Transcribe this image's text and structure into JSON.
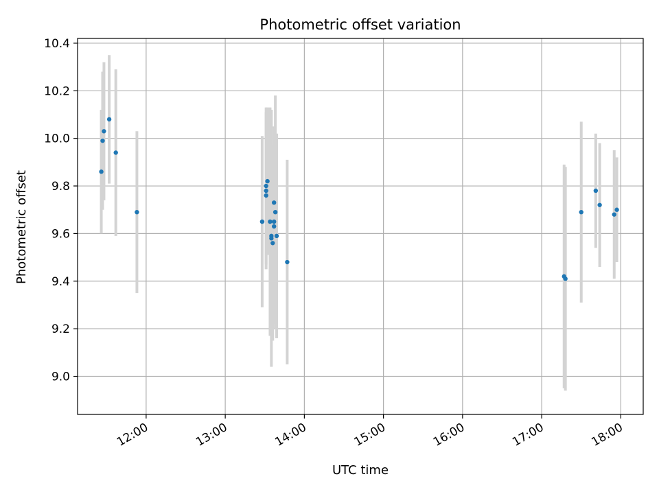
{
  "chart_data": {
    "type": "scatter",
    "title": "Photometric offset variation",
    "xlabel": "UTC time",
    "ylabel": "Photometric offset",
    "grid": true,
    "xlim": [
      "11:08",
      "18:17"
    ],
    "ylim": [
      8.84,
      10.42
    ],
    "x_ticks": [
      "12:00",
      "13:00",
      "14:00",
      "15:00",
      "16:00",
      "17:00",
      "18:00"
    ],
    "y_ticks": [
      "9.0",
      "9.2",
      "9.4",
      "9.6",
      "9.8",
      "10.0",
      "10.2",
      "10.4"
    ],
    "colors": {
      "point": "#1f77b4",
      "errorbar": "#d3d3d3",
      "grid": "#b0b0b0"
    },
    "points": [
      {
        "x": "11:26",
        "y": 9.86,
        "err": 0.26
      },
      {
        "x": "11:27",
        "y": 9.99,
        "err": 0.29
      },
      {
        "x": "11:28",
        "y": 10.03,
        "err": 0.29
      },
      {
        "x": "11:32",
        "y": 10.08,
        "err": 0.27
      },
      {
        "x": "11:37",
        "y": 9.94,
        "err": 0.35
      },
      {
        "x": "11:53",
        "y": 9.69,
        "err": 0.34
      },
      {
        "x": "13:28",
        "y": 9.65,
        "err": 0.36
      },
      {
        "x": "13:31",
        "y": 9.76,
        "err": 0.25
      },
      {
        "x": "13:31",
        "y": 9.78,
        "err": 0.33
      },
      {
        "x": "13:31",
        "y": 9.8,
        "err": 0.33
      },
      {
        "x": "13:32",
        "y": 9.82,
        "err": 0.31
      },
      {
        "x": "13:34",
        "y": 9.65,
        "err": 0.48
      },
      {
        "x": "13:35",
        "y": 9.59,
        "err": 0.42
      },
      {
        "x": "13:35",
        "y": 9.58,
        "err": 0.54
      },
      {
        "x": "13:36",
        "y": 9.56,
        "err": 0.41
      },
      {
        "x": "13:37",
        "y": 9.63,
        "err": 0.41
      },
      {
        "x": "13:37",
        "y": 9.65,
        "err": 0.4
      },
      {
        "x": "13:37",
        "y": 9.73,
        "err": 0.32
      },
      {
        "x": "13:38",
        "y": 9.69,
        "err": 0.49
      },
      {
        "x": "13:39",
        "y": 9.59,
        "err": 0.43
      },
      {
        "x": "13:47",
        "y": 9.48,
        "err": 0.43
      },
      {
        "x": "17:17",
        "y": 9.42,
        "err": 0.47
      },
      {
        "x": "17:18",
        "y": 9.41,
        "err": 0.47
      },
      {
        "x": "17:30",
        "y": 9.69,
        "err": 0.38
      },
      {
        "x": "17:41",
        "y": 9.78,
        "err": 0.24
      },
      {
        "x": "17:44",
        "y": 9.72,
        "err": 0.26
      },
      {
        "x": "17:55",
        "y": 9.68,
        "err": 0.27
      },
      {
        "x": "17:57",
        "y": 9.7,
        "err": 0.22
      }
    ]
  }
}
